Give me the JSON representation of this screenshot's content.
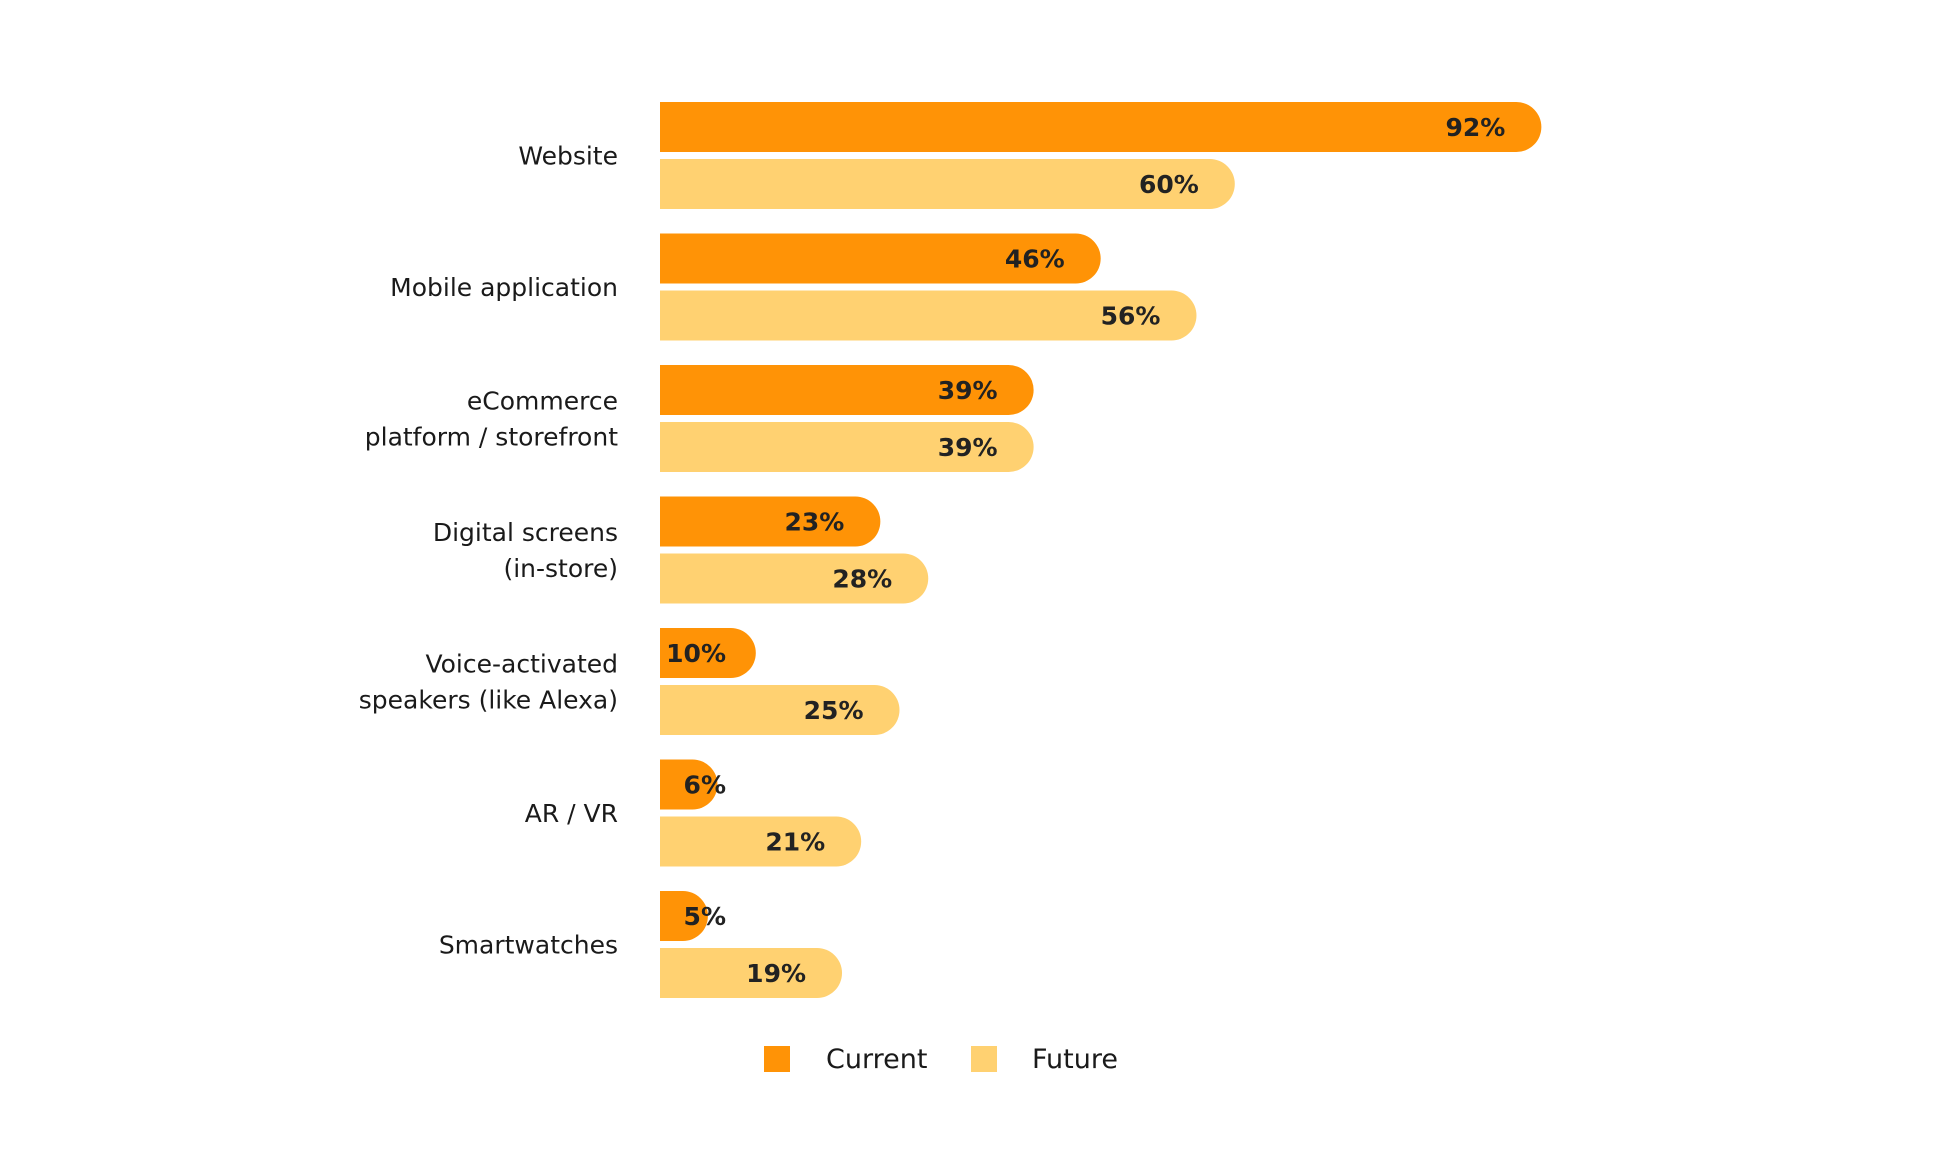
{
  "chart_data": {
    "type": "bar",
    "orientation": "horizontal",
    "categories": [
      [
        "Website"
      ],
      [
        "Mobile application"
      ],
      [
        "eCommerce",
        "platform / storefront"
      ],
      [
        "Digital screens",
        "(in-store)"
      ],
      [
        "Voice-activated",
        "speakers (like Alexa)"
      ],
      [
        "AR / VR"
      ],
      [
        "Smartwatches"
      ]
    ],
    "series": [
      {
        "name": "Current",
        "color": "#ff9306",
        "values": [
          92,
          46,
          39,
          23,
          10,
          6,
          5
        ]
      },
      {
        "name": "Future",
        "color": "#ffd171",
        "values": [
          60,
          56,
          39,
          28,
          25,
          21,
          19
        ]
      }
    ],
    "value_suffix": "%",
    "xlim": [
      0,
      100
    ],
    "grid": false,
    "legend_position": "bottom-center"
  }
}
